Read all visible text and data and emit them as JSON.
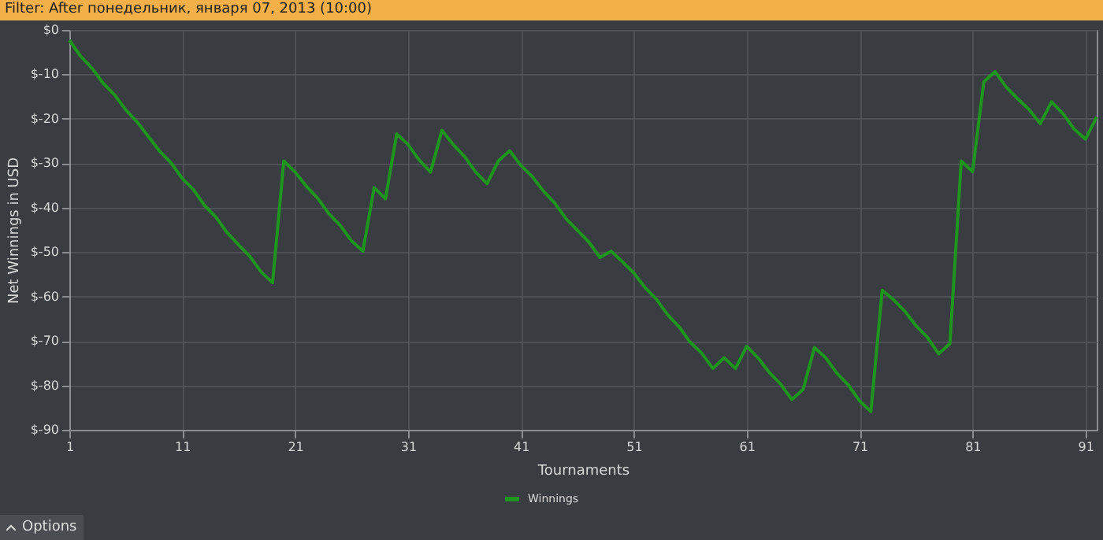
{
  "chart_data": {
    "type": "line",
    "title": "Filter: After понедельник, января 07, 2013 (10:00)",
    "xlabel": "Tournaments",
    "ylabel": "Net Winnings in USD",
    "x": [
      1,
      2,
      3,
      4,
      5,
      6,
      7,
      8,
      9,
      10,
      11,
      12,
      13,
      14,
      15,
      16,
      17,
      18,
      19,
      20,
      21,
      22,
      23,
      24,
      25,
      26,
      27,
      28,
      29,
      30,
      31,
      32,
      33,
      34,
      35,
      36,
      37,
      38,
      39,
      40,
      41,
      42,
      43,
      44,
      45,
      46,
      47,
      48,
      49,
      50,
      51,
      52,
      53,
      54,
      55,
      56,
      57,
      58,
      59,
      60,
      61,
      62,
      63,
      64,
      65,
      66,
      67,
      68,
      69,
      70,
      71,
      72,
      73,
      74,
      75,
      76,
      77,
      78,
      79,
      80,
      81,
      82,
      83,
      84,
      85,
      86,
      87,
      88,
      89,
      90,
      91,
      92
    ],
    "series": [
      {
        "name": "Winnings",
        "color": "#1e961e",
        "values": [
          -2.3,
          -5.9,
          -8.6,
          -12,
          -14.6,
          -18,
          -20.7,
          -24,
          -27.3,
          -29.9,
          -33.4,
          -36,
          -39.6,
          -42.2,
          -45.7,
          -48.4,
          -51,
          -54.5,
          -56.9,
          -29.5,
          -32,
          -35.2,
          -37.9,
          -41.4,
          -44,
          -47.5,
          -49.8,
          -35.5,
          -38,
          -23.4,
          -25.8,
          -29.3,
          -32,
          -22.6,
          -25.8,
          -28.5,
          -32,
          -34.6,
          -29.5,
          -27.2,
          -30.5,
          -33,
          -36.3,
          -39,
          -42.5,
          -45.1,
          -47.7,
          -51.2,
          -49.8,
          -52.2,
          -54.7,
          -58,
          -60.6,
          -64.1,
          -66.8,
          -70.3,
          -72.7,
          -76.2,
          -73.8,
          -76.2,
          -71.2,
          -73.8,
          -77.1,
          -79.7,
          -83.2,
          -80.9,
          -71.5,
          -73.8,
          -77.3,
          -79.9,
          -83.5,
          -85.9,
          -58.6,
          -60.7,
          -63.3,
          -66.6,
          -69.2,
          -72.9,
          -70.6,
          -29.5,
          -31.9,
          -11.7,
          -9.4,
          -12.9,
          -15.5,
          -17.9,
          -21.1,
          -16.2,
          -18.8,
          -22.3,
          -24.6,
          -19.6
        ]
      }
    ],
    "xlim": [
      1,
      92
    ],
    "ylim": [
      -90,
      0
    ],
    "xticks": [
      1,
      11,
      21,
      31,
      41,
      51,
      61,
      71,
      81,
      91
    ],
    "yticks": [
      {
        "value": 0,
        "label": "$0"
      },
      {
        "value": -10,
        "label": "$-10"
      },
      {
        "value": -20,
        "label": "$-20"
      },
      {
        "value": -30,
        "label": "$-30"
      },
      {
        "value": -40,
        "label": "$-40"
      },
      {
        "value": -50,
        "label": "$-50"
      },
      {
        "value": -60,
        "label": "$-60"
      },
      {
        "value": -70,
        "label": "$-70"
      },
      {
        "value": -80,
        "label": "$-80"
      },
      {
        "value": -90,
        "label": "$-90"
      }
    ],
    "grid": true,
    "legend": "bottom",
    "annotations": [
      "Options"
    ]
  }
}
